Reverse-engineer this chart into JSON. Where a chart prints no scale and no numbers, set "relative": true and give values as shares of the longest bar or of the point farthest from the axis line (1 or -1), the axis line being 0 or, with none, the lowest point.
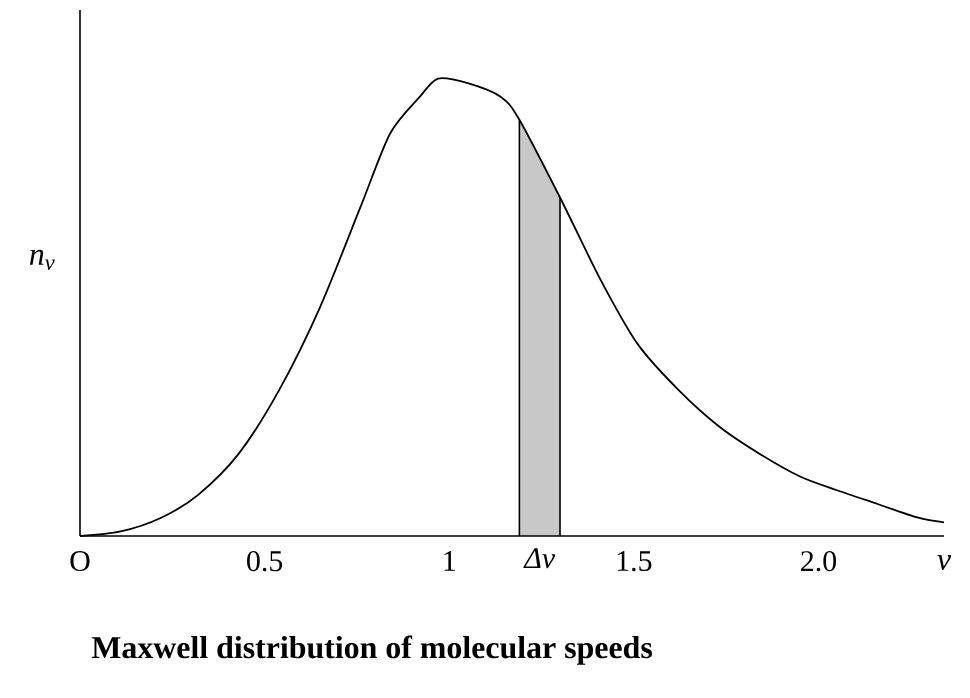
{
  "chart_data": {
    "type": "line",
    "title": "Maxwell distribution of molecular speeds",
    "xlabel": "v",
    "ylabel": "n$_{v}$",
    "x": [
      0,
      0.11,
      0.22,
      0.32,
      0.43,
      0.54,
      0.65,
      0.76,
      0.84,
      0.92,
      0.97,
      1.05,
      1.14,
      1.19,
      1.3,
      1.41,
      1.51,
      1.62,
      1.73,
      1.84,
      1.95,
      2.05,
      2.16,
      2.27,
      2.34
    ],
    "values": [
      0,
      0.01,
      0.04,
      0.09,
      0.18,
      0.32,
      0.5,
      0.72,
      0.88,
      0.96,
      1,
      0.99,
      0.96,
      0.91,
      0.74,
      0.56,
      0.42,
      0.32,
      0.24,
      0.18,
      0.13,
      0.1,
      0.07,
      0.04,
      0.03
    ],
    "color": "#000000",
    "relative": true,
    "tick_labels": "x",
    "xlim": [
      0,
      2.34
    ],
    "xticks": [
      {
        "value": 0,
        "label": "O"
      },
      0.5,
      1,
      1.5,
      {
        "value": 2,
        "label": "2.0"
      }
    ],
    "bands": [
      {
        "axis": "x",
        "from": 1.19,
        "to": 1.3,
        "label": "Δv",
        "color": "#c8c8c8"
      }
    ]
  }
}
